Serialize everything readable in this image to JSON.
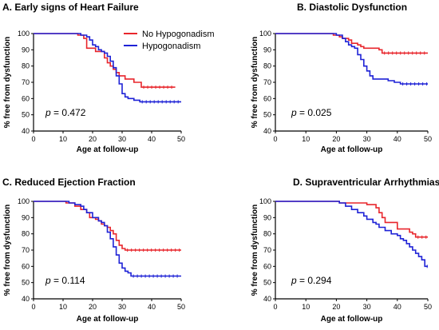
{
  "colors": {
    "no_hypogonadism": "#e8262c",
    "hypogonadism": "#1e22d6",
    "axis": "#000000"
  },
  "chart_data": [
    {
      "type": "line",
      "title": "A. Early signs of Heart Failure",
      "xlabel": "Age at follow-up",
      "ylabel": "% free  from dysfunction",
      "xlim": [
        0,
        50
      ],
      "ylim": [
        40,
        100
      ],
      "xticks": [
        0,
        10,
        20,
        30,
        40,
        50
      ],
      "yticks": [
        40,
        50,
        60,
        70,
        80,
        90,
        100
      ],
      "p_prefix": "p",
      "p_value": " = 0.472",
      "legend": {
        "placement": "top-right",
        "entries": [
          "No Hypogonadism",
          "Hypogonadism"
        ]
      },
      "series": [
        {
          "name": "No Hypogonadism",
          "color": "#e8262c",
          "points": [
            [
              0,
              100
            ],
            [
              15,
              99
            ],
            [
              17,
              97
            ],
            [
              18,
              91
            ],
            [
              20,
              91
            ],
            [
              21,
              89
            ],
            [
              23,
              89
            ],
            [
              24,
              85
            ],
            [
              25,
              82
            ],
            [
              26,
              80
            ],
            [
              27,
              78
            ],
            [
              28,
              76
            ],
            [
              29,
              74
            ],
            [
              30,
              74
            ],
            [
              31,
              72
            ],
            [
              33,
              72
            ],
            [
              34,
              70
            ],
            [
              36,
              70
            ],
            [
              36.5,
              67
            ],
            [
              48,
              67
            ]
          ]
        },
        {
          "name": "Hypogonadism",
          "color": "#1e22d6",
          "points": [
            [
              0,
              100
            ],
            [
              16,
              99
            ],
            [
              18,
              98
            ],
            [
              19,
              96
            ],
            [
              20,
              93
            ],
            [
              21,
              92
            ],
            [
              22,
              90
            ],
            [
              23,
              89
            ],
            [
              24,
              88
            ],
            [
              25,
              86
            ],
            [
              26,
              83
            ],
            [
              27,
              79
            ],
            [
              28,
              74
            ],
            [
              29,
              69
            ],
            [
              30,
              63
            ],
            [
              31,
              61
            ],
            [
              32,
              60
            ],
            [
              33,
              60
            ],
            [
              34,
              59
            ],
            [
              36,
              58
            ],
            [
              50,
              58
            ]
          ]
        }
      ]
    },
    {
      "type": "line",
      "title": "B. Diastolic Dysfunction",
      "xlabel": "Age at follow-up",
      "ylabel": "% free  from dysfunction",
      "xlim": [
        0,
        50
      ],
      "ylim": [
        40,
        100
      ],
      "xticks": [
        0,
        10,
        20,
        30,
        40,
        50
      ],
      "yticks": [
        40,
        50,
        60,
        70,
        80,
        90,
        100
      ],
      "p_prefix": "p",
      "p_value": " = 0.025",
      "series": [
        {
          "name": "No Hypogonadism",
          "color": "#e8262c",
          "points": [
            [
              0,
              100
            ],
            [
              18,
              100
            ],
            [
              19,
              99
            ],
            [
              21,
              98
            ],
            [
              22,
              97
            ],
            [
              24,
              96
            ],
            [
              25,
              94
            ],
            [
              27,
              93
            ],
            [
              28,
              92
            ],
            [
              29,
              91
            ],
            [
              33,
              91
            ],
            [
              34,
              90
            ],
            [
              35,
              88
            ],
            [
              50,
              88
            ]
          ]
        },
        {
          "name": "Hypogonadism",
          "color": "#1e22d6",
          "points": [
            [
              0,
              100
            ],
            [
              19,
              100
            ],
            [
              20,
              99
            ],
            [
              22,
              97
            ],
            [
              23,
              95
            ],
            [
              24,
              93
            ],
            [
              25,
              92
            ],
            [
              26,
              91
            ],
            [
              27,
              87
            ],
            [
              28,
              84
            ],
            [
              29,
              80
            ],
            [
              30,
              77
            ],
            [
              31,
              74
            ],
            [
              32,
              72
            ],
            [
              33,
              72
            ],
            [
              36,
              72
            ],
            [
              37,
              71
            ],
            [
              39,
              70
            ],
            [
              41,
              69
            ],
            [
              50,
              69
            ]
          ]
        }
      ]
    },
    {
      "type": "line",
      "title": "C. Reduced Ejection Fraction",
      "xlabel": "Age at follow-up",
      "ylabel": "% free  from dysfunction",
      "xlim": [
        0,
        50
      ],
      "ylim": [
        40,
        100
      ],
      "xticks": [
        0,
        10,
        20,
        30,
        40,
        50
      ],
      "yticks": [
        40,
        50,
        60,
        70,
        80,
        90,
        100
      ],
      "p_prefix": "p",
      "p_value": " = 0.114",
      "series": [
        {
          "name": "No Hypogonadism",
          "color": "#e8262c",
          "points": [
            [
              0,
              100
            ],
            [
              10,
              100
            ],
            [
              11,
              99
            ],
            [
              14,
              97
            ],
            [
              16,
              95
            ],
            [
              18,
              93
            ],
            [
              19,
              90
            ],
            [
              21,
              89
            ],
            [
              22,
              88
            ],
            [
              23,
              86
            ],
            [
              24,
              85
            ],
            [
              25,
              84
            ],
            [
              26,
              82
            ],
            [
              27,
              80
            ],
            [
              28,
              76
            ],
            [
              29,
              73
            ],
            [
              30,
              71
            ],
            [
              31,
              70
            ],
            [
              50,
              70
            ]
          ]
        },
        {
          "name": "Hypogonadism",
          "color": "#1e22d6",
          "points": [
            [
              0,
              100
            ],
            [
              10,
              100
            ],
            [
              12,
              99
            ],
            [
              14,
              98
            ],
            [
              16,
              97
            ],
            [
              17,
              95
            ],
            [
              18,
              93
            ],
            [
              20,
              90
            ],
            [
              22,
              88
            ],
            [
              23,
              87
            ],
            [
              24,
              85
            ],
            [
              25,
              81
            ],
            [
              26,
              77
            ],
            [
              27,
              72
            ],
            [
              28,
              67
            ],
            [
              29,
              62
            ],
            [
              30,
              59
            ],
            [
              31,
              57
            ],
            [
              32,
              56
            ],
            [
              33,
              54
            ],
            [
              50,
              54
            ]
          ]
        }
      ]
    },
    {
      "type": "line",
      "title": "D. Supraventricular Arrhythmias",
      "xlabel": "Age at follow-up",
      "ylabel": "% free  from dysfunction",
      "xlim": [
        0,
        50
      ],
      "ylim": [
        40,
        100
      ],
      "xticks": [
        0,
        10,
        20,
        30,
        40,
        50
      ],
      "yticks": [
        40,
        50,
        60,
        70,
        80,
        90,
        100
      ],
      "p_prefix": "p",
      "p_value": " = 0.294",
      "series": [
        {
          "name": "No Hypogonadism",
          "color": "#e8262c",
          "points": [
            [
              0,
              100
            ],
            [
              20,
              100
            ],
            [
              21,
              99
            ],
            [
              30,
              98
            ],
            [
              33,
              96
            ],
            [
              34,
              93
            ],
            [
              35,
              90
            ],
            [
              36,
              87
            ],
            [
              39,
              87
            ],
            [
              40,
              83
            ],
            [
              43,
              83
            ],
            [
              44,
              81
            ],
            [
              45,
              80
            ],
            [
              46,
              78
            ],
            [
              50,
              78
            ]
          ]
        },
        {
          "name": "Hypogonadism",
          "color": "#1e22d6",
          "points": [
            [
              0,
              100
            ],
            [
              20,
              100
            ],
            [
              21,
              99
            ],
            [
              23,
              97
            ],
            [
              25,
              95
            ],
            [
              27,
              93
            ],
            [
              29,
              91
            ],
            [
              30,
              89
            ],
            [
              32,
              87
            ],
            [
              33,
              86
            ],
            [
              34,
              84
            ],
            [
              36,
              82
            ],
            [
              38,
              80
            ],
            [
              40,
              79
            ],
            [
              41,
              77
            ],
            [
              42,
              76
            ],
            [
              43,
              74
            ],
            [
              44,
              72
            ],
            [
              45,
              70
            ],
            [
              46,
              68
            ],
            [
              47,
              66
            ],
            [
              48,
              64
            ],
            [
              49,
              60
            ],
            [
              50,
              60
            ]
          ]
        }
      ]
    }
  ]
}
